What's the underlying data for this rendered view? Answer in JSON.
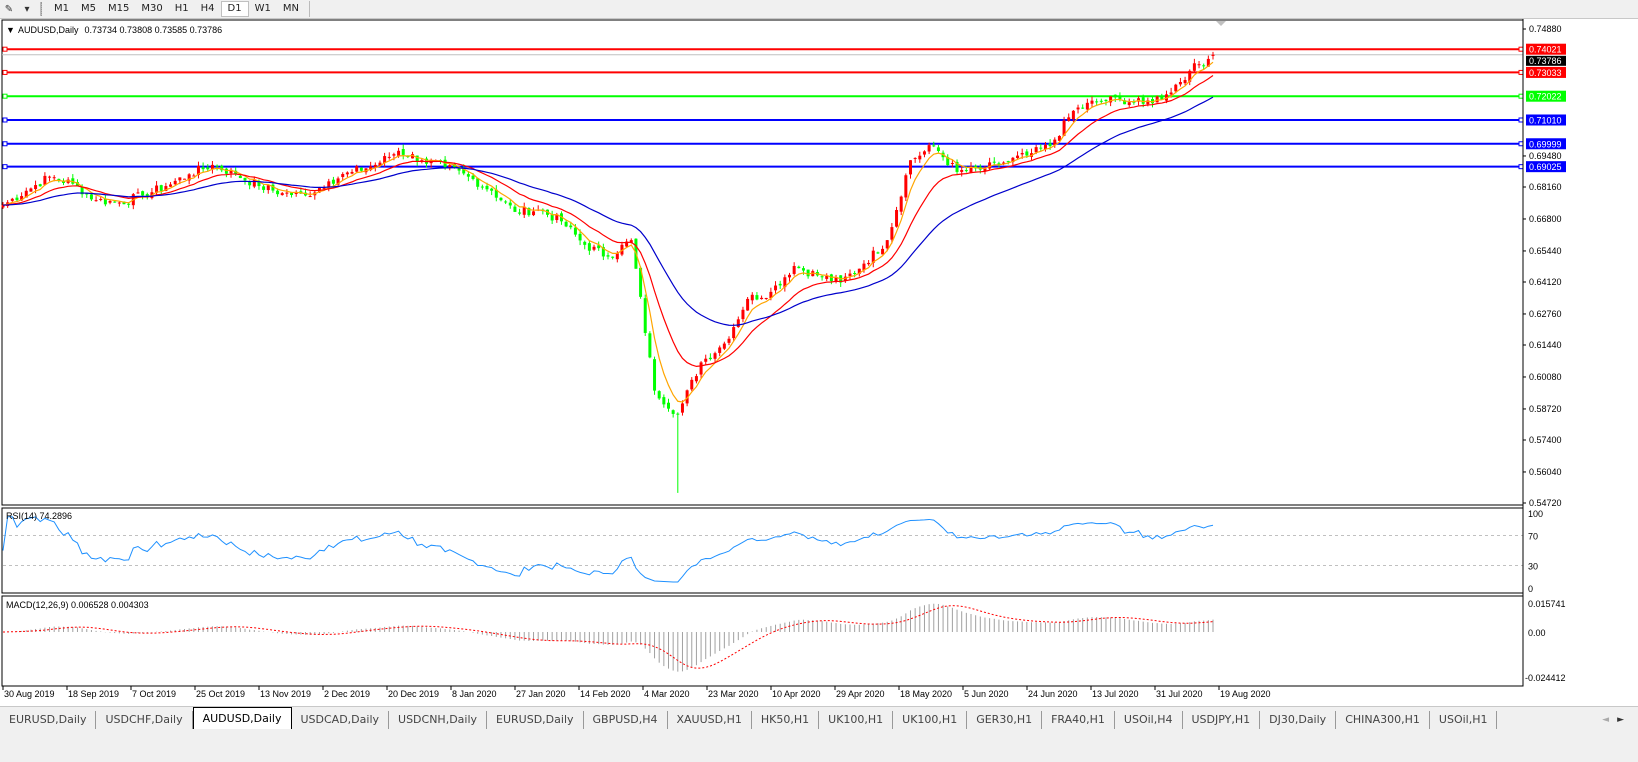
{
  "toolbar": {
    "draw_tool_icon": "line-tool-icon",
    "timeframes": [
      "M1",
      "M5",
      "M15",
      "M30",
      "H1",
      "H4",
      "D1",
      "W1",
      "MN"
    ],
    "active_timeframe": "D1"
  },
  "chart_header": {
    "symbol": "AUDUSD,Daily",
    "ohlc": "0.73734 0.73808 0.73585 0.73786"
  },
  "chart_data": {
    "type": "candlestick",
    "symbol": "AUDUSD",
    "timeframe": "Daily",
    "up_color": "#ff0000",
    "down_color": "#00ff00",
    "approx_weekly_closes": [
      0.6739,
      0.68,
      0.686,
      0.683,
      0.676,
      0.675,
      0.678,
      0.682,
      0.687,
      0.691,
      0.687,
      0.682,
      0.679,
      0.678,
      0.684,
      0.688,
      0.691,
      0.697,
      0.693,
      0.69,
      0.686,
      0.68,
      0.671,
      0.672,
      0.667,
      0.657,
      0.652,
      0.659,
      0.595,
      0.585,
      0.607,
      0.615,
      0.634,
      0.637,
      0.648,
      0.644,
      0.641,
      0.649,
      0.659,
      0.693,
      0.699,
      0.688,
      0.689,
      0.692,
      0.695,
      0.699,
      0.714,
      0.718,
      0.719,
      0.717,
      0.721,
      0.731,
      0.7379
    ],
    "period_low": 0.5515,
    "last": {
      "open": 0.73734,
      "high": 0.73808,
      "low": 0.73585,
      "close": 0.73786
    },
    "moving_averages": [
      {
        "color": "#ffa500"
      },
      {
        "color": "#ff0000"
      },
      {
        "color": "#0000cc"
      }
    ],
    "ylim": [
      0.5472,
      0.7488
    ],
    "y_ticks": [
      "0.74880",
      "0.69480",
      "0.68160",
      "0.66800",
      "0.65440",
      "0.64120",
      "0.62760",
      "0.61440",
      "0.60080",
      "0.58720",
      "0.57400",
      "0.56040",
      "0.54720"
    ],
    "x_ticks": [
      "30 Aug 2019",
      "18 Sep 2019",
      "7 Oct 2019",
      "25 Oct 2019",
      "13 Nov 2019",
      "2 Dec 2019",
      "20 Dec 2019",
      "8 Jan 2020",
      "27 Jan 2020",
      "14 Feb 2020",
      "4 Mar 2020",
      "23 Mar 2020",
      "10 Apr 2020",
      "29 Apr 2020",
      "18 May 2020",
      "5 Jun 2020",
      "24 Jun 2020",
      "13 Jul 2020",
      "31 Jul 2020",
      "19 Aug 2020"
    ],
    "current_price": "0.73786",
    "horizontal_lines": [
      {
        "price": 0.74021,
        "label": "0.74021",
        "color": "#ff0000"
      },
      {
        "price": 0.73033,
        "label": "0.73033",
        "color": "#ff0000"
      },
      {
        "price": 0.72022,
        "label": "0.72022",
        "color": "#00ff00"
      },
      {
        "price": 0.7101,
        "label": "0.71010",
        "color": "#0000ff"
      },
      {
        "price": 0.69999,
        "label": "0.69999",
        "color": "#0000ff"
      },
      {
        "price": 0.69025,
        "label": "0.69025",
        "color": "#0000ff"
      }
    ],
    "rsi": {
      "label": "RSI(14) 74.2896",
      "color": "#1e90ff",
      "levels": [
        70,
        30
      ],
      "y_ticks": [
        "100",
        "70",
        "30",
        "0"
      ]
    },
    "macd": {
      "label": "MACD(12,26,9) 0.006528 0.004303",
      "histogram_color": "#a0a0a0",
      "signal_color": "#ff0000",
      "y_ticks": [
        "0.015741",
        "0.00",
        "-0.024412"
      ]
    }
  },
  "tabs": [
    {
      "label": "EURUSD,Daily"
    },
    {
      "label": "USDCHF,Daily"
    },
    {
      "label": "AUDUSD,Daily",
      "active": true
    },
    {
      "label": "USDCAD,Daily"
    },
    {
      "label": "USDCNH,Daily"
    },
    {
      "label": "EURUSD,Daily"
    },
    {
      "label": "GBPUSD,H4"
    },
    {
      "label": "XAUUSD,H1"
    },
    {
      "label": "HK50,H1"
    },
    {
      "label": "UK100,H1"
    },
    {
      "label": "UK100,H1"
    },
    {
      "label": "GER30,H1"
    },
    {
      "label": "FRA40,H1"
    },
    {
      "label": "USOil,H4"
    },
    {
      "label": "USDJPY,H1"
    },
    {
      "label": "DJ30,Daily"
    },
    {
      "label": "CHINA300,H1"
    },
    {
      "label": "USOil,H1"
    }
  ],
  "tab_scroll": {
    "left": "◄",
    "right": "►"
  }
}
